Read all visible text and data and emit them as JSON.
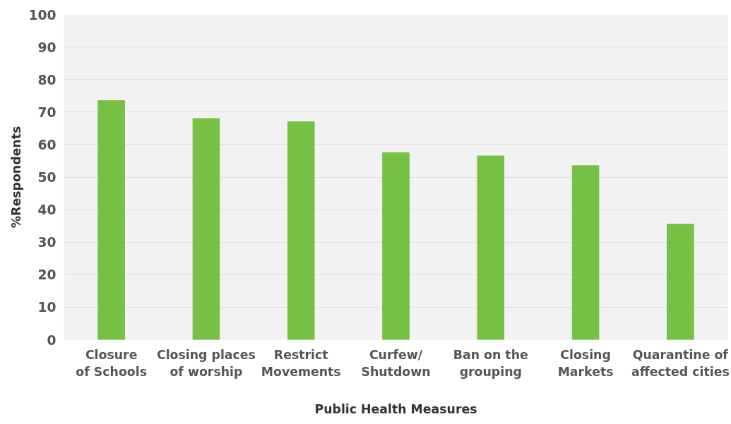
{
  "chart_data": {
    "type": "bar",
    "xlabel": "Public Health Measures",
    "ylabel": "%Respondents",
    "categories": [
      "Closure of Schools",
      "Closing places of worship",
      "Restrict Movements",
      "Curfew/ Shutdown",
      "Ban on the grouping",
      "Closing Markets",
      "Quarantine of affected cities"
    ],
    "values": [
      73.5,
      68,
      67,
      57.5,
      56.5,
      53.5,
      35.5
    ],
    "color": "#76c043",
    "ylim": [
      0,
      100
    ],
    "yticks": [
      0,
      10,
      20,
      30,
      40,
      50,
      60,
      70,
      80,
      90,
      100
    ],
    "grid": "y"
  }
}
